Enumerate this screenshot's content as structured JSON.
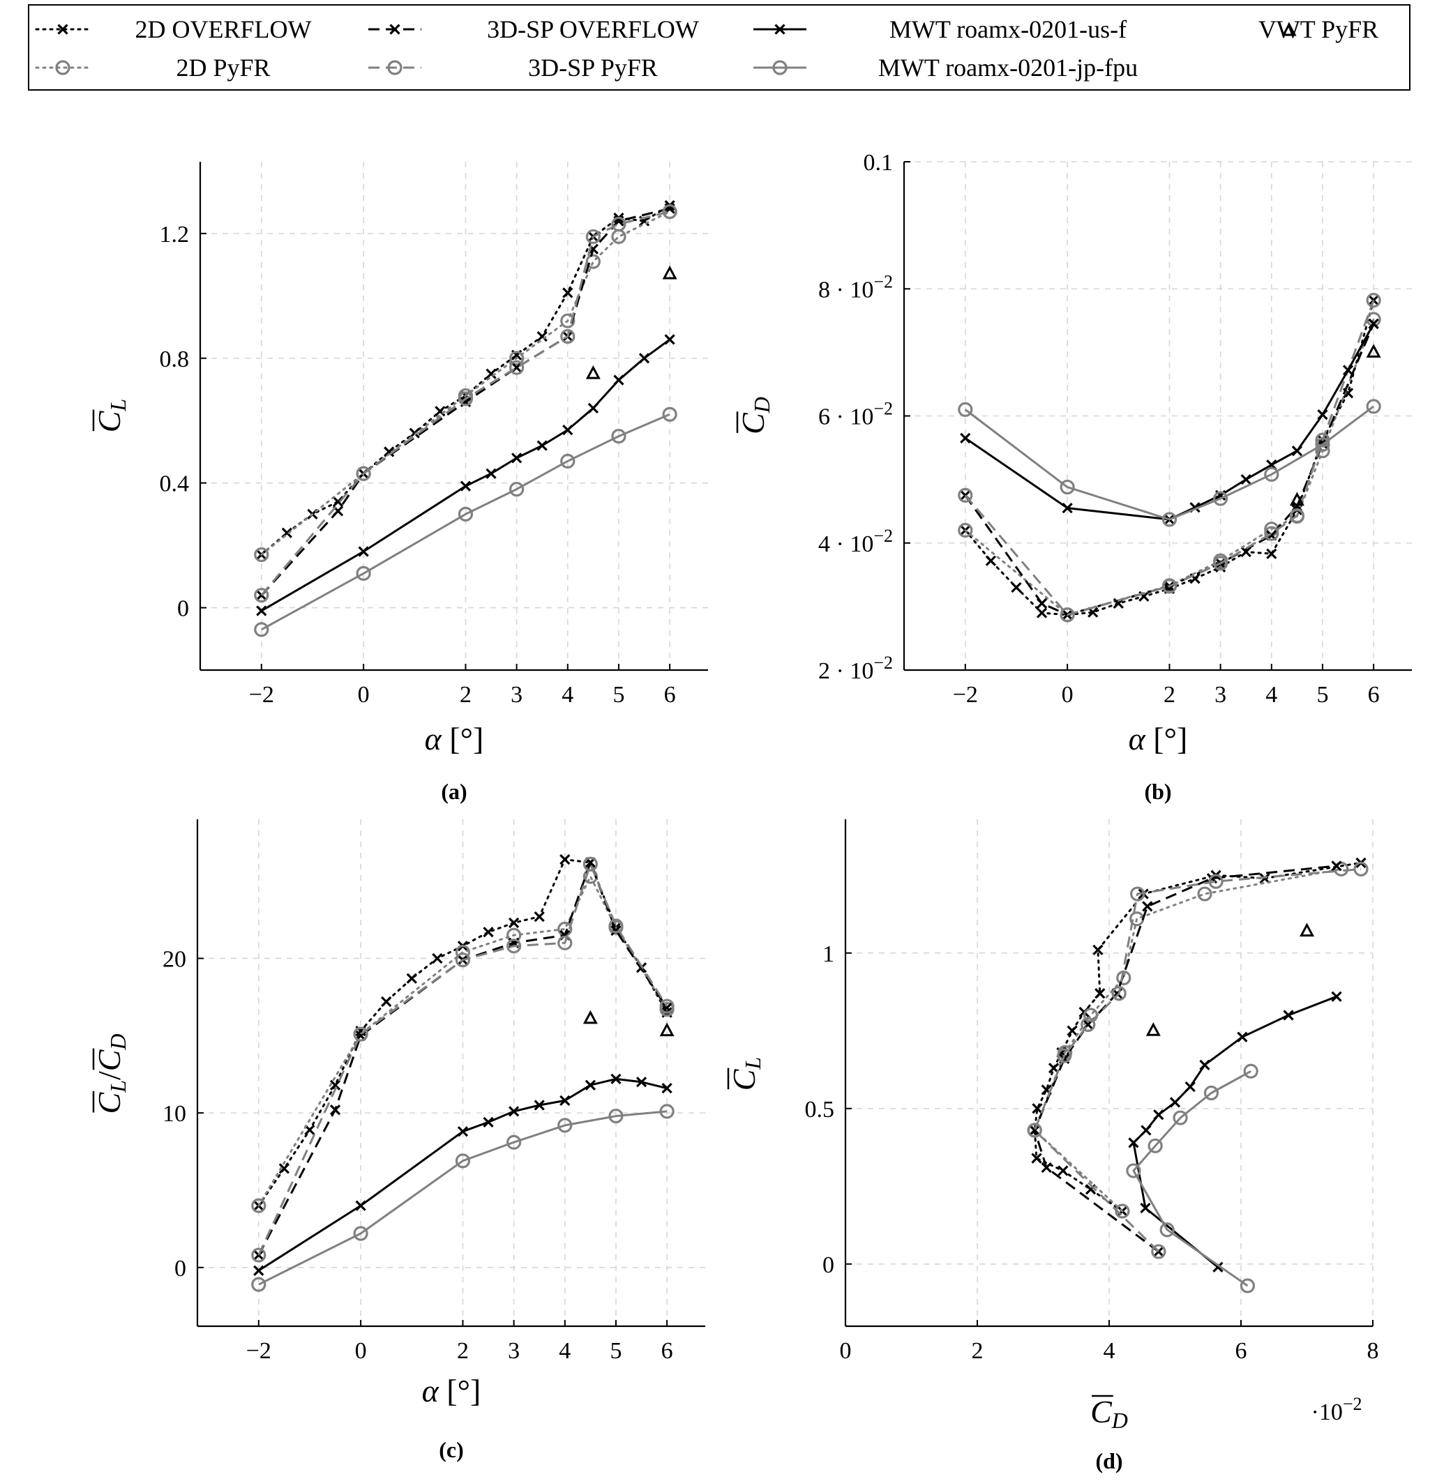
{
  "legend": [
    {
      "key": "ovf2d",
      "label": "2D OVERFLOW",
      "color": "#000000",
      "dash": "dotted",
      "marker": "x"
    },
    {
      "key": "pyfr2d",
      "label": "2D PyFR",
      "color": "#808080",
      "dash": "dotted",
      "marker": "o"
    },
    {
      "key": "ovf3d",
      "label": "3D-SP OVERFLOW",
      "color": "#000000",
      "dash": "dashed",
      "marker": "x"
    },
    {
      "key": "pyfr3d",
      "label": "3D-SP PyFR",
      "color": "#808080",
      "dash": "dashed",
      "marker": "o"
    },
    {
      "key": "mwtus",
      "label": "MWT roamx-0201-us-f",
      "color": "#000000",
      "dash": "solid",
      "marker": "x"
    },
    {
      "key": "mwtjp",
      "label": "MWT roamx-0201-jp-fpu",
      "color": "#808080",
      "dash": "solid",
      "marker": "o"
    },
    {
      "key": "vwt",
      "label": "VWT PyFR",
      "color": "#000000",
      "dash": "none",
      "marker": "triangle"
    }
  ],
  "chart_data": [
    {
      "id": "a",
      "type": "line",
      "caption": "(a)",
      "xlabel": "α [°]",
      "ylabel": "C_L",
      "xlim": [
        -3.2,
        6.75
      ],
      "ylim": [
        -0.2,
        1.43
      ],
      "xticks": [
        -2,
        0,
        2,
        3,
        4,
        5,
        6
      ],
      "xtick_labels": [
        "−2",
        "0",
        "2",
        "3",
        "4",
        "5",
        "6"
      ],
      "yticks": [
        0,
        0.4,
        0.8,
        1.2
      ],
      "ytick_labels": [
        "0",
        "0.4",
        "0.8",
        "1.2"
      ],
      "series": [
        {
          "key": "ovf2d",
          "x": [
            -2,
            -1.5,
            -1,
            -0.5,
            0,
            0.5,
            1,
            1.5,
            2,
            2.5,
            3,
            3.5,
            4,
            4.5,
            5,
            5.5,
            6
          ],
          "y": [
            0.17,
            0.24,
            0.3,
            0.34,
            0.43,
            0.5,
            0.56,
            0.63,
            0.68,
            0.75,
            0.81,
            0.87,
            1.01,
            1.19,
            1.25,
            1.24,
            1.29
          ]
        },
        {
          "key": "pyfr2d",
          "x": [
            -2,
            0,
            2,
            3,
            4,
            4.5,
            5,
            6
          ],
          "y": [
            0.17,
            0.43,
            0.68,
            0.8,
            0.92,
            1.11,
            1.19,
            1.27
          ]
        },
        {
          "key": "ovf3d",
          "x": [
            -2,
            -0.5,
            0,
            2,
            3,
            4,
            4.5,
            5,
            6
          ],
          "y": [
            0.04,
            0.31,
            0.43,
            0.66,
            0.77,
            0.87,
            1.15,
            1.24,
            1.28
          ]
        },
        {
          "key": "pyfr3d",
          "x": [
            -2,
            0,
            2,
            3,
            4,
            4.5,
            5,
            6
          ],
          "y": [
            0.04,
            0.43,
            0.67,
            0.77,
            0.87,
            1.19,
            1.23,
            1.27
          ]
        },
        {
          "key": "mwtus",
          "x": [
            -2,
            0,
            2,
            2.5,
            3,
            3.5,
            4,
            4.5,
            5,
            5.5,
            6
          ],
          "y": [
            -0.01,
            0.18,
            0.39,
            0.43,
            0.48,
            0.52,
            0.57,
            0.64,
            0.73,
            0.8,
            0.86
          ]
        },
        {
          "key": "mwtjp",
          "x": [
            -2,
            0,
            2,
            3,
            4,
            5,
            6
          ],
          "y": [
            -0.07,
            0.11,
            0.3,
            0.38,
            0.47,
            0.55,
            0.62
          ]
        },
        {
          "key": "vwt",
          "x": [
            4.5,
            6
          ],
          "y": [
            0.75,
            1.07
          ]
        }
      ]
    },
    {
      "id": "b",
      "type": "line",
      "caption": "(b)",
      "xlabel": "α [°]",
      "ylabel": "C_D",
      "xlim": [
        -3.2,
        6.75
      ],
      "ylim": [
        0.02,
        0.1
      ],
      "xticks": [
        -2,
        0,
        2,
        3,
        4,
        5,
        6
      ],
      "xtick_labels": [
        "−2",
        "0",
        "2",
        "3",
        "4",
        "5",
        "6"
      ],
      "yticks": [
        0.02,
        0.04,
        0.06,
        0.08,
        0.1
      ],
      "ytick_labels": [
        "2 · 10^−2",
        "4 · 10^−2",
        "6 · 10^−2",
        "8 · 10^−2",
        "0.1"
      ],
      "series": [
        {
          "key": "ovf2d",
          "x": [
            -2,
            -1.5,
            -1,
            -0.5,
            0,
            0.5,
            1,
            1.5,
            2,
            2.5,
            3,
            3.5,
            4,
            4.5,
            5,
            5.5,
            6
          ],
          "y": [
            0.042,
            0.0372,
            0.033,
            0.029,
            0.0287,
            0.0291,
            0.0305,
            0.0316,
            0.0328,
            0.0344,
            0.0362,
            0.0386,
            0.0383,
            0.0452,
            0.0562,
            0.0636,
            0.0782
          ]
        },
        {
          "key": "pyfr2d",
          "x": [
            -2,
            0,
            2,
            3,
            4,
            4.5,
            5,
            6
          ],
          "y": [
            0.042,
            0.0287,
            0.0333,
            0.0372,
            0.0422,
            0.0442,
            0.0545,
            0.0752
          ]
        },
        {
          "key": "ovf3d",
          "x": [
            -2,
            -0.5,
            0,
            2,
            3,
            4,
            4.5,
            5,
            6
          ],
          "y": [
            0.0475,
            0.0305,
            0.0287,
            0.0332,
            0.0368,
            0.0412,
            0.0458,
            0.0556,
            0.0745
          ]
        },
        {
          "key": "pyfr3d",
          "x": [
            -2,
            0,
            2,
            3,
            4,
            4.5,
            5,
            6
          ],
          "y": [
            0.0475,
            0.0287,
            0.0332,
            0.0368,
            0.0415,
            0.0443,
            0.0562,
            0.0782
          ]
        },
        {
          "key": "mwtus",
          "x": [
            -2,
            0,
            2,
            2.5,
            3,
            3.5,
            4,
            4.5,
            5,
            5.5,
            6
          ],
          "y": [
            0.0565,
            0.0455,
            0.0437,
            0.0456,
            0.0475,
            0.05,
            0.0523,
            0.0545,
            0.0602,
            0.0672,
            0.0745
          ]
        },
        {
          "key": "mwtjp",
          "x": [
            -2,
            0,
            2,
            3,
            4,
            5,
            6
          ],
          "y": [
            0.061,
            0.0488,
            0.0437,
            0.047,
            0.0508,
            0.0555,
            0.0615
          ]
        },
        {
          "key": "vwt",
          "x": [
            4.5,
            6
          ],
          "y": [
            0.0467,
            0.07
          ]
        }
      ]
    },
    {
      "id": "c",
      "type": "line",
      "caption": "(c)",
      "xlabel": "α [°]",
      "ylabel": "C_L / C_D",
      "xlim": [
        -3.2,
        6.75
      ],
      "ylim": [
        -3.8,
        29
      ],
      "xticks": [
        -2,
        0,
        2,
        3,
        4,
        5,
        6
      ],
      "xtick_labels": [
        "−2",
        "0",
        "2",
        "3",
        "4",
        "5",
        "6"
      ],
      "yticks": [
        0,
        10,
        20
      ],
      "ytick_labels": [
        "0",
        "10",
        "20"
      ],
      "series": [
        {
          "key": "ovf2d",
          "x": [
            -2,
            -1.5,
            -1,
            -0.5,
            0,
            0.5,
            1,
            1.5,
            2,
            2.5,
            3,
            3.5,
            4,
            4.5,
            5,
            5.5,
            6
          ],
          "y": [
            4.0,
            6.4,
            8.9,
            11.8,
            15.3,
            17.2,
            18.7,
            20.0,
            20.8,
            21.7,
            22.3,
            22.7,
            26.4,
            26.2,
            22.0,
            19.4,
            16.5
          ]
        },
        {
          "key": "pyfr2d",
          "x": [
            -2,
            0,
            2,
            3,
            4,
            4.5,
            5,
            6
          ],
          "y": [
            4.0,
            15.1,
            20.4,
            21.5,
            21.9,
            25.3,
            22.0,
            16.7
          ]
        },
        {
          "key": "ovf3d",
          "x": [
            -2,
            -0.5,
            0,
            2,
            3,
            4,
            4.5,
            5,
            6
          ],
          "y": [
            0.8,
            10.2,
            15.0,
            19.9,
            21.0,
            21.5,
            26.2,
            21.8,
            16.8
          ]
        },
        {
          "key": "pyfr3d",
          "x": [
            -2,
            0,
            2,
            3,
            4,
            4.5,
            5,
            6
          ],
          "y": [
            0.8,
            15.1,
            19.9,
            20.8,
            21.0,
            26.1,
            22.1,
            16.9
          ]
        },
        {
          "key": "mwtus",
          "x": [
            -2,
            0,
            2,
            2.5,
            3,
            3.5,
            4,
            4.5,
            5,
            5.5,
            6
          ],
          "y": [
            -0.2,
            4.0,
            8.8,
            9.4,
            10.1,
            10.5,
            10.8,
            11.8,
            12.2,
            12.0,
            11.6
          ]
        },
        {
          "key": "mwtjp",
          "x": [
            -2,
            0,
            2,
            3,
            4,
            5,
            6
          ],
          "y": [
            -1.1,
            2.2,
            6.9,
            8.1,
            9.2,
            9.8,
            10.1
          ]
        },
        {
          "key": "vwt",
          "x": [
            4.5,
            6
          ],
          "y": [
            16.1,
            15.3
          ]
        }
      ]
    },
    {
      "id": "d",
      "type": "line",
      "caption": "(d)",
      "xlabel": "C_D",
      "ylabel": "C_L",
      "xscale_label": "·10^−2",
      "xlim": [
        0,
        0.08
      ],
      "ylim": [
        -0.2,
        1.43
      ],
      "xticks": [
        0,
        0.02,
        0.04,
        0.06,
        0.08
      ],
      "xtick_labels": [
        "0",
        "2",
        "4",
        "6",
        "8"
      ],
      "yticks": [
        0,
        0.5,
        1
      ],
      "ytick_labels": [
        "0",
        "0.5",
        "1"
      ],
      "series": [
        {
          "key": "ovf2d",
          "x": [
            0.042,
            0.0372,
            0.033,
            0.029,
            0.0287,
            0.0291,
            0.0305,
            0.0316,
            0.0328,
            0.0344,
            0.0362,
            0.0386,
            0.0383,
            0.0452,
            0.0562,
            0.0636,
            0.0782
          ],
          "y": [
            0.17,
            0.24,
            0.3,
            0.34,
            0.43,
            0.5,
            0.56,
            0.63,
            0.68,
            0.75,
            0.81,
            0.87,
            1.01,
            1.19,
            1.25,
            1.24,
            1.29
          ]
        },
        {
          "key": "pyfr2d",
          "x": [
            0.042,
            0.0287,
            0.0333,
            0.0372,
            0.0422,
            0.0442,
            0.0545,
            0.0752
          ],
          "y": [
            0.17,
            0.43,
            0.68,
            0.8,
            0.92,
            1.11,
            1.19,
            1.27
          ]
        },
        {
          "key": "ovf3d",
          "x": [
            0.0475,
            0.0305,
            0.0287,
            0.0332,
            0.0368,
            0.0412,
            0.0458,
            0.0556,
            0.0745
          ],
          "y": [
            0.04,
            0.31,
            0.43,
            0.66,
            0.77,
            0.87,
            1.15,
            1.24,
            1.28
          ]
        },
        {
          "key": "pyfr3d",
          "x": [
            0.0475,
            0.0287,
            0.0332,
            0.0368,
            0.0415,
            0.0443,
            0.0562,
            0.0782
          ],
          "y": [
            0.04,
            0.43,
            0.67,
            0.77,
            0.87,
            1.19,
            1.23,
            1.27
          ]
        },
        {
          "key": "mwtus",
          "x": [
            0.0565,
            0.0455,
            0.0437,
            0.0456,
            0.0475,
            0.05,
            0.0523,
            0.0545,
            0.0602,
            0.0672,
            0.0745
          ],
          "y": [
            -0.01,
            0.18,
            0.39,
            0.43,
            0.48,
            0.52,
            0.57,
            0.64,
            0.73,
            0.8,
            0.86
          ]
        },
        {
          "key": "mwtjp",
          "x": [
            0.061,
            0.0488,
            0.0437,
            0.047,
            0.0508,
            0.0555,
            0.0615
          ],
          "y": [
            -0.07,
            0.11,
            0.3,
            0.38,
            0.47,
            0.55,
            0.62
          ]
        },
        {
          "key": "vwt",
          "x": [
            0.0467,
            0.07
          ],
          "y": [
            0.75,
            1.07
          ]
        }
      ]
    }
  ]
}
